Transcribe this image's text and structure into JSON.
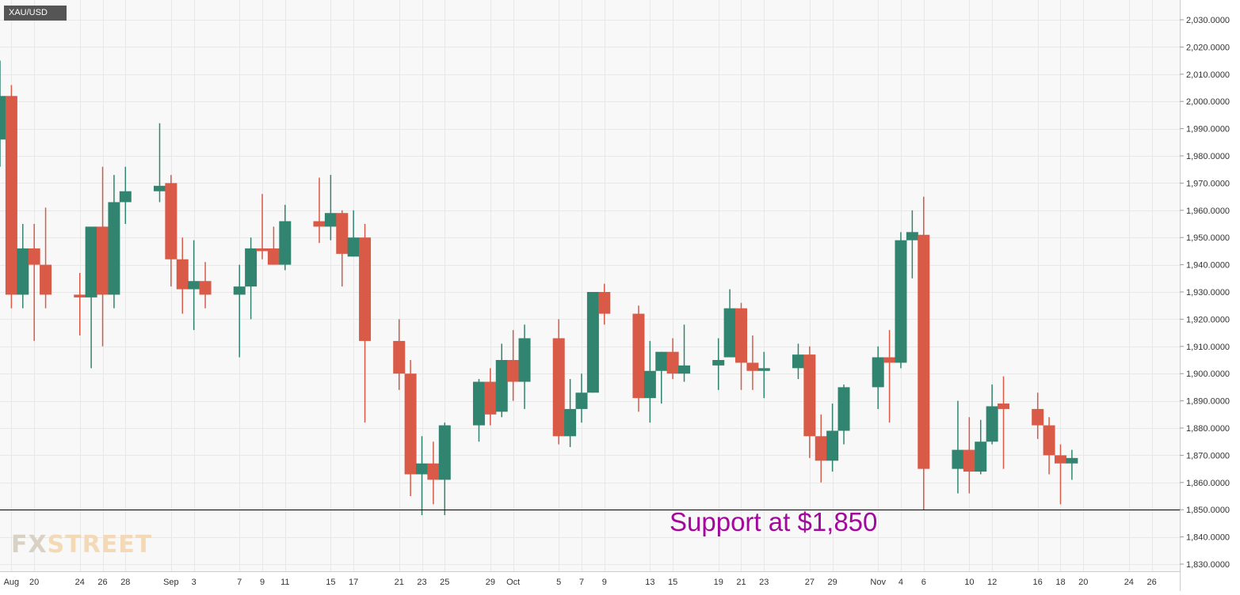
{
  "symbol": "XAU/USD",
  "logo": {
    "fx": "FX",
    "street": "STREET"
  },
  "annotation": {
    "text": "Support at $1,850"
  },
  "colors": {
    "up": "#318570",
    "down": "#d85a47",
    "grid": "#e8e8e8",
    "background": "#f8f8f8",
    "support_line": "#000000",
    "annotation": "#a2089c"
  },
  "chart_data": {
    "type": "candlestick",
    "title": "",
    "xlabel": "",
    "ylabel": "",
    "ylim": [
      1825,
      2035
    ],
    "y_ticks": [
      1830,
      1840,
      1850,
      1860,
      1870,
      1880,
      1890,
      1900,
      1910,
      1920,
      1930,
      1940,
      1950,
      1960,
      1970,
      1980,
      1990,
      2000,
      2010,
      2020,
      2030
    ],
    "y_tick_labels": [
      "1,830.0000",
      "1,840.0000",
      "1,850.0000",
      "1,860.0000",
      "1,870.0000",
      "1,880.0000",
      "1,890.0000",
      "1,900.0000",
      "1,910.0000",
      "1,920.0000",
      "1,930.0000",
      "1,940.0000",
      "1,950.0000",
      "1,960.0000",
      "1,970.0000",
      "1,980.0000",
      "1,990.0000",
      "2,000.0000",
      "2,010.0000",
      "2,020.0000",
      "2,030.0000"
    ],
    "x_range": [
      "2020-08-17",
      "2020-11-27"
    ],
    "x_ticks": [
      {
        "date": "2020-08-18",
        "label": "Aug"
      },
      {
        "date": "2020-08-20",
        "label": "20"
      },
      {
        "date": "2020-08-24",
        "label": "24"
      },
      {
        "date": "2020-08-26",
        "label": "26"
      },
      {
        "date": "2020-08-28",
        "label": "28"
      },
      {
        "date": "2020-09-01",
        "label": "Sep"
      },
      {
        "date": "2020-09-03",
        "label": "3"
      },
      {
        "date": "2020-09-07",
        "label": "7"
      },
      {
        "date": "2020-09-09",
        "label": "9"
      },
      {
        "date": "2020-09-11",
        "label": "11"
      },
      {
        "date": "2020-09-15",
        "label": "15"
      },
      {
        "date": "2020-09-17",
        "label": "17"
      },
      {
        "date": "2020-09-21",
        "label": "21"
      },
      {
        "date": "2020-09-23",
        "label": "23"
      },
      {
        "date": "2020-09-25",
        "label": "25"
      },
      {
        "date": "2020-09-29",
        "label": "29"
      },
      {
        "date": "2020-10-01",
        "label": "Oct"
      },
      {
        "date": "2020-10-05",
        "label": "5"
      },
      {
        "date": "2020-10-07",
        "label": "7"
      },
      {
        "date": "2020-10-09",
        "label": "9"
      },
      {
        "date": "2020-10-13",
        "label": "13"
      },
      {
        "date": "2020-10-15",
        "label": "15"
      },
      {
        "date": "2020-10-19",
        "label": "19"
      },
      {
        "date": "2020-10-21",
        "label": "21"
      },
      {
        "date": "2020-10-23",
        "label": "23"
      },
      {
        "date": "2020-10-27",
        "label": "27"
      },
      {
        "date": "2020-10-29",
        "label": "29"
      },
      {
        "date": "2020-11-02",
        "label": "Nov"
      },
      {
        "date": "2020-11-04",
        "label": "4"
      },
      {
        "date": "2020-11-06",
        "label": "6"
      },
      {
        "date": "2020-11-10",
        "label": "10"
      },
      {
        "date": "2020-11-12",
        "label": "12"
      },
      {
        "date": "2020-11-16",
        "label": "16"
      },
      {
        "date": "2020-11-18",
        "label": "18"
      },
      {
        "date": "2020-11-20",
        "label": "20"
      },
      {
        "date": "2020-11-24",
        "label": "24"
      },
      {
        "date": "2020-11-26",
        "label": "26"
      }
    ],
    "support_level": 1850,
    "grid": true,
    "candles": [
      {
        "date": "2020-08-17",
        "open": 1986,
        "high": 2015,
        "low": 1976,
        "close": 2002
      },
      {
        "date": "2020-08-18",
        "open": 2002,
        "high": 2006,
        "low": 1924,
        "close": 1929
      },
      {
        "date": "2020-08-19",
        "open": 1929,
        "high": 1955,
        "low": 1924,
        "close": 1946
      },
      {
        "date": "2020-08-20",
        "open": 1946,
        "high": 1955,
        "low": 1912,
        "close": 1940
      },
      {
        "date": "2020-08-21",
        "open": 1940,
        "high": 1961,
        "low": 1924,
        "close": 1929
      },
      {
        "date": "2020-08-24",
        "open": 1929,
        "high": 1937,
        "low": 1914,
        "close": 1928
      },
      {
        "date": "2020-08-25",
        "open": 1928,
        "high": 1954,
        "low": 1902,
        "close": 1954
      },
      {
        "date": "2020-08-26",
        "open": 1954,
        "high": 1976,
        "low": 1910,
        "close": 1929
      },
      {
        "date": "2020-08-27",
        "open": 1929,
        "high": 1973,
        "low": 1924,
        "close": 1963
      },
      {
        "date": "2020-08-28",
        "open": 1963,
        "high": 1976,
        "low": 1955,
        "close": 1967
      },
      {
        "date": "2020-08-31",
        "open": 1967,
        "high": 1992,
        "low": 1963,
        "close": 1969
      },
      {
        "date": "2020-09-01",
        "open": 1970,
        "high": 1973,
        "low": 1932,
        "close": 1942
      },
      {
        "date": "2020-09-02",
        "open": 1942,
        "high": 1950,
        "low": 1922,
        "close": 1931
      },
      {
        "date": "2020-09-03",
        "open": 1931,
        "high": 1949,
        "low": 1916,
        "close": 1934
      },
      {
        "date": "2020-09-04",
        "open": 1934,
        "high": 1941,
        "low": 1924,
        "close": 1929
      },
      {
        "date": "2020-09-07",
        "open": 1929,
        "high": 1940,
        "low": 1906,
        "close": 1932
      },
      {
        "date": "2020-09-08",
        "open": 1932,
        "high": 1950,
        "low": 1920,
        "close": 1946
      },
      {
        "date": "2020-09-09",
        "open": 1946,
        "high": 1966,
        "low": 1942,
        "close": 1945
      },
      {
        "date": "2020-09-10",
        "open": 1946,
        "high": 1954,
        "low": 1940,
        "close": 1940
      },
      {
        "date": "2020-09-11",
        "open": 1940,
        "high": 1962,
        "low": 1938,
        "close": 1956
      },
      {
        "date": "2020-09-14",
        "open": 1956,
        "high": 1972,
        "low": 1948,
        "close": 1954
      },
      {
        "date": "2020-09-15",
        "open": 1954,
        "high": 1973,
        "low": 1949,
        "close": 1959
      },
      {
        "date": "2020-09-16",
        "open": 1959,
        "high": 1960,
        "low": 1932,
        "close": 1944
      },
      {
        "date": "2020-09-17",
        "open": 1943,
        "high": 1960,
        "low": 1943,
        "close": 1950
      },
      {
        "date": "2020-09-18",
        "open": 1950,
        "high": 1955,
        "low": 1882,
        "close": 1912
      },
      {
        "date": "2020-09-21",
        "open": 1912,
        "high": 1920,
        "low": 1894,
        "close": 1900
      },
      {
        "date": "2020-09-22",
        "open": 1900,
        "high": 1905,
        "low": 1855,
        "close": 1863
      },
      {
        "date": "2020-09-23",
        "open": 1863,
        "high": 1877,
        "low": 1848,
        "close": 1867
      },
      {
        "date": "2020-09-24",
        "open": 1867,
        "high": 1875,
        "low": 1852,
        "close": 1861
      },
      {
        "date": "2020-09-25",
        "open": 1861,
        "high": 1882,
        "low": 1848,
        "close": 1881
      },
      {
        "date": "2020-09-28",
        "open": 1881,
        "high": 1898,
        "low": 1875,
        "close": 1897
      },
      {
        "date": "2020-09-29",
        "open": 1897,
        "high": 1902,
        "low": 1881,
        "close": 1885
      },
      {
        "date": "2020-09-30",
        "open": 1886,
        "high": 1911,
        "low": 1884,
        "close": 1905
      },
      {
        "date": "2020-10-01",
        "open": 1905,
        "high": 1916,
        "low": 1890,
        "close": 1897
      },
      {
        "date": "2020-10-02",
        "open": 1897,
        "high": 1918,
        "low": 1887,
        "close": 1913
      },
      {
        "date": "2020-10-05",
        "open": 1913,
        "high": 1920,
        "low": 1874,
        "close": 1877
      },
      {
        "date": "2020-10-06",
        "open": 1877,
        "high": 1898,
        "low": 1873,
        "close": 1887
      },
      {
        "date": "2020-10-07",
        "open": 1887,
        "high": 1900,
        "low": 1882,
        "close": 1893
      },
      {
        "date": "2020-10-08",
        "open": 1893,
        "high": 1930,
        "low": 1893,
        "close": 1930
      },
      {
        "date": "2020-10-09",
        "open": 1930,
        "high": 1933,
        "low": 1918,
        "close": 1922
      },
      {
        "date": "2020-10-12",
        "open": 1922,
        "high": 1925,
        "low": 1886,
        "close": 1891
      },
      {
        "date": "2020-10-13",
        "open": 1891,
        "high": 1912,
        "low": 1882,
        "close": 1901
      },
      {
        "date": "2020-10-14",
        "open": 1901,
        "high": 1908,
        "low": 1889,
        "close": 1908
      },
      {
        "date": "2020-10-15",
        "open": 1908,
        "high": 1913,
        "low": 1898,
        "close": 1900
      },
      {
        "date": "2020-10-16",
        "open": 1900,
        "high": 1918,
        "low": 1897,
        "close": 1903
      },
      {
        "date": "2020-10-19",
        "open": 1903,
        "high": 1913,
        "low": 1894,
        "close": 1905
      },
      {
        "date": "2020-10-20",
        "open": 1906,
        "high": 1931,
        "low": 1906,
        "close": 1924
      },
      {
        "date": "2020-10-21",
        "open": 1924,
        "high": 1926,
        "low": 1894,
        "close": 1904
      },
      {
        "date": "2020-10-22",
        "open": 1904,
        "high": 1914,
        "low": 1894,
        "close": 1901
      },
      {
        "date": "2020-10-23",
        "open": 1901,
        "high": 1908,
        "low": 1891,
        "close": 1902
      },
      {
        "date": "2020-10-26",
        "open": 1902,
        "high": 1911,
        "low": 1898,
        "close": 1907
      },
      {
        "date": "2020-10-27",
        "open": 1907,
        "high": 1910,
        "low": 1869,
        "close": 1877
      },
      {
        "date": "2020-10-28",
        "open": 1877,
        "high": 1885,
        "low": 1860,
        "close": 1868
      },
      {
        "date": "2020-10-29",
        "open": 1868,
        "high": 1889,
        "low": 1864,
        "close": 1879
      },
      {
        "date": "2020-10-30",
        "open": 1879,
        "high": 1896,
        "low": 1874,
        "close": 1895
      },
      {
        "date": "2020-11-02",
        "open": 1895,
        "high": 1910,
        "low": 1887,
        "close": 1906
      },
      {
        "date": "2020-11-03",
        "open": 1906,
        "high": 1916,
        "low": 1882,
        "close": 1904
      },
      {
        "date": "2020-11-04",
        "open": 1904,
        "high": 1952,
        "low": 1902,
        "close": 1949
      },
      {
        "date": "2020-11-05",
        "open": 1949,
        "high": 1960,
        "low": 1935,
        "close": 1952
      },
      {
        "date": "2020-11-06",
        "open": 1951,
        "high": 1965,
        "low": 1850,
        "close": 1865
      },
      {
        "date": "2020-11-09",
        "open": 1865,
        "high": 1890,
        "low": 1856,
        "close": 1872
      },
      {
        "date": "2020-11-10",
        "open": 1872,
        "high": 1884,
        "low": 1856,
        "close": 1864
      },
      {
        "date": "2020-11-11",
        "open": 1864,
        "high": 1883,
        "low": 1863,
        "close": 1875
      },
      {
        "date": "2020-11-12",
        "open": 1875,
        "high": 1896,
        "low": 1874,
        "close": 1888
      },
      {
        "date": "2020-11-13",
        "open": 1889,
        "high": 1899,
        "low": 1865,
        "close": 1887
      },
      {
        "date": "2020-11-16",
        "open": 1887,
        "high": 1893,
        "low": 1876,
        "close": 1881
      },
      {
        "date": "2020-11-17",
        "open": 1881,
        "high": 1884,
        "low": 1863,
        "close": 1870
      },
      {
        "date": "2020-11-18",
        "open": 1870,
        "high": 1874,
        "low": 1852,
        "close": 1867
      },
      {
        "date": "2020-11-19",
        "open": 1867,
        "high": 1872,
        "low": 1861,
        "close": 1869
      }
    ]
  }
}
